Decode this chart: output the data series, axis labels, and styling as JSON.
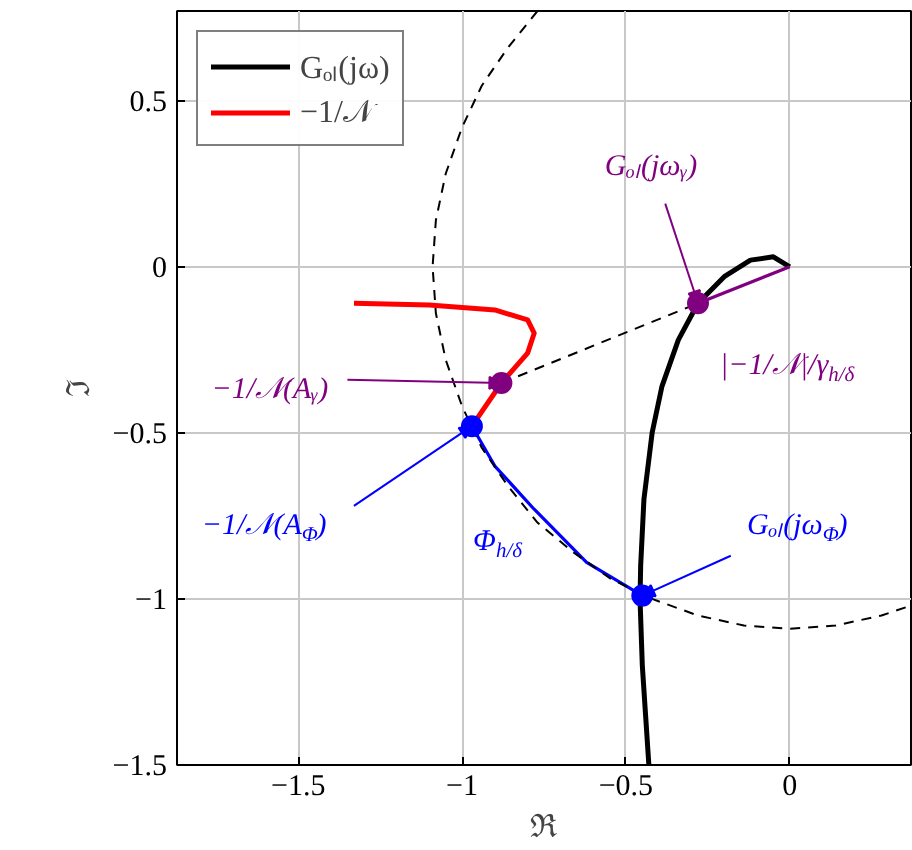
{
  "chart_data": {
    "type": "line",
    "xlabel": "ℜ",
    "ylabel": "ℑ",
    "xlim": [
      -1.87,
      0.37
    ],
    "ylim": [
      -1.5,
      0.77
    ],
    "xticks": [
      {
        "value": -1.5,
        "label": "−1.5"
      },
      {
        "value": -1,
        "label": "−1"
      },
      {
        "value": -0.5,
        "label": "−0.5"
      },
      0
    ],
    "yticks": [
      {
        "value": -1.5,
        "label": "−1.5"
      },
      {
        "value": -1,
        "label": "−1"
      },
      {
        "value": -0.5,
        "label": "−0.5"
      },
      0,
      0.5
    ],
    "grid": true,
    "legend": "top left",
    "series": [
      {
        "name": "Gₒₗ(jω)",
        "color": "#000000",
        "x": [
          0,
          -0.05,
          -0.12,
          -0.2,
          -0.28,
          -0.34,
          -0.39,
          -0.42,
          -0.445,
          -0.455,
          -0.457,
          -0.45,
          -0.44,
          -0.43
        ],
        "values": [
          0,
          0.03,
          0.02,
          -0.03,
          -0.11,
          -0.22,
          -0.36,
          -0.5,
          -0.7,
          -0.9,
          -1.0,
          -1.2,
          -1.35,
          -1.5
        ]
      },
      {
        "name": "−1/𝒩",
        "color": "#ff0000",
        "x": [
          -1.33,
          -1.1,
          -0.9,
          -0.8,
          -0.78,
          -0.8,
          -0.88,
          -0.97
        ],
        "values": [
          -0.11,
          -0.115,
          -0.13,
          -0.16,
          -0.2,
          -0.26,
          -0.35,
          -0.48
        ]
      },
      {
        "color": "#0000ff",
        "x": [
          -0.97,
          -0.9,
          -0.78,
          -0.62,
          -0.45
        ],
        "values": [
          -0.48,
          -0.6,
          -0.73,
          -0.89,
          -0.99
        ]
      },
      {
        "color": "#800080",
        "x": [
          -0.28,
          0
        ],
        "values": [
          -0.11,
          0
        ]
      },
      {
        "color": "#000000",
        "line_style": "dashed",
        "x": [
          -0.77,
          -0.86,
          -0.94,
          -1.0,
          -1.05,
          -1.08,
          -1.09,
          -1.08,
          -1.05,
          -1.0,
          -0.94,
          -0.86,
          -0.77,
          -0.66,
          -0.545,
          -0.42,
          -0.28,
          -0.14,
          0,
          0.14,
          0.28,
          0.37
        ],
        "values": [
          0.77,
          0.66,
          0.545,
          0.42,
          0.28,
          0.14,
          0,
          -0.14,
          -0.28,
          -0.42,
          -0.545,
          -0.66,
          -0.77,
          -0.86,
          -0.94,
          -1.0,
          -1.05,
          -1.08,
          -1.09,
          -1.08,
          -1.05,
          -1.02
        ]
      },
      {
        "color": "#000000",
        "line_style": "dashed",
        "x": [
          -0.88,
          -0.28
        ],
        "values": [
          -0.35,
          -0.11
        ]
      },
      {
        "type": "scatter",
        "color": "#800080",
        "marker": "circle",
        "x": [
          -0.88,
          -0.28
        ],
        "values": [
          -0.35,
          -0.11
        ]
      },
      {
        "type": "scatter",
        "color": "#0000ff",
        "marker": "circle",
        "x": [
          -0.97,
          -0.45
        ],
        "values": [
          -0.48,
          -0.99
        ]
      }
    ],
    "annotations": [
      {
        "text": "Gₒₗ(jωᵧ)",
        "x": -0.28,
        "y": -0.11
      },
      {
        "text": "|−1/𝒩|/γ$_{h/δ}$",
        "x": -0.28,
        "y": -0.11
      },
      {
        "text": "−1/𝒩(Aᵧ)",
        "x": -0.88,
        "y": -0.35
      },
      {
        "text": "−1/𝒩(A$_{Φ}$)",
        "x": -0.97,
        "y": -0.48
      },
      {
        "text": "Φ$_{h/δ}$",
        "x": -0.78,
        "y": -0.73
      },
      {
        "text": "Gₒₗ(jω$_{Φ}$)",
        "x": -0.45,
        "y": -0.99
      }
    ]
  }
}
